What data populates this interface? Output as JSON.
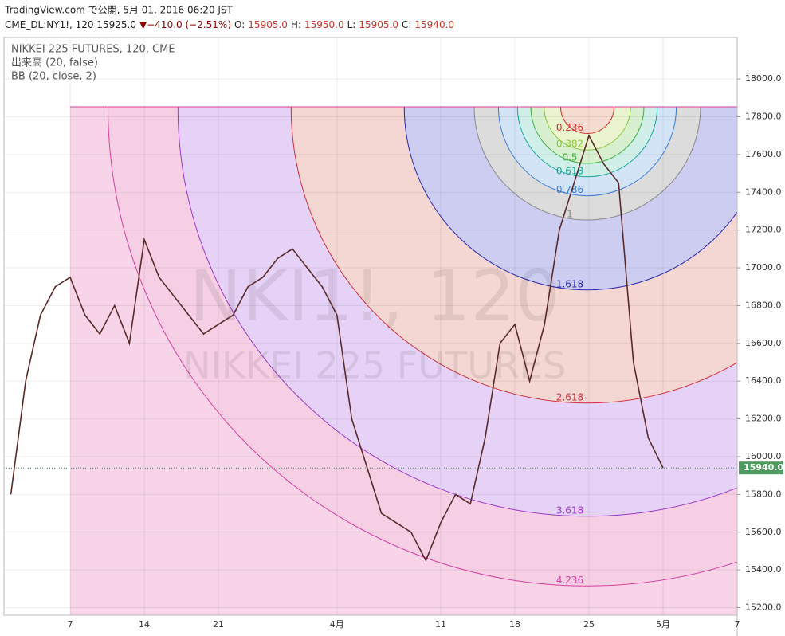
{
  "header": {
    "line1": "TradingView.com で公開, 5月 01, 2016 06:20 JST",
    "symbol": "CME_DL:NY1!, 120 15925.0",
    "change": "▼−410.0 (−2.51%)",
    "ohlc": [
      {
        "key": "O:",
        "value": "15905.0"
      },
      {
        "key": "H:",
        "value": "15950.0"
      },
      {
        "key": "L:",
        "value": "15905.0"
      },
      {
        "key": "C:",
        "value": "15940.0"
      }
    ]
  },
  "chart_data": {
    "type": "line",
    "legend_lines": [
      "NIKKEI 225 FUTURES, 120, CME",
      "出来高 (20, false)",
      "BB (20, close, 2)"
    ],
    "watermark": [
      "NKI1!, 120",
      "NIKKEI 225 FUTURES"
    ],
    "categories": [
      null,
      null,
      null,
      null,
      "7",
      null,
      null,
      null,
      null,
      "14",
      null,
      null,
      null,
      null,
      "21",
      null,
      null,
      null,
      null,
      null,
      null,
      null,
      "4月",
      null,
      null,
      null,
      null,
      null,
      null,
      "11",
      null,
      null,
      null,
      null,
      "18",
      null,
      null,
      null,
      null,
      "25",
      null,
      null,
      null,
      null,
      "5月",
      null,
      null,
      null,
      null,
      "7"
    ],
    "values": [
      15800,
      16400,
      16750,
      16900,
      16950,
      16750,
      16650,
      16800,
      16600,
      17150,
      16950,
      16850,
      16750,
      16650,
      16700,
      16750,
      16900,
      16950,
      17050,
      17100,
      17000,
      16900,
      16750,
      16200,
      15950,
      15700,
      15650,
      15600,
      15450,
      15650,
      15800,
      15750,
      16100,
      16600,
      16700,
      16400,
      16700,
      17200,
      17450,
      17700,
      17550,
      17450,
      16500,
      16100,
      15940,
      null,
      null,
      null,
      null,
      null
    ],
    "color": "#5a2a2a",
    "ylim": [
      15160,
      18220
    ],
    "yticks": [
      {
        "value": 15200,
        "label": "15200.0"
      },
      {
        "value": 15400,
        "label": "15400.0"
      },
      {
        "value": 15600,
        "label": "15600.0"
      },
      {
        "value": 15800,
        "label": "15800.0"
      },
      {
        "value": 16000,
        "label": "16000.0"
      },
      {
        "value": 16200,
        "label": "16200.0"
      },
      {
        "value": 16400,
        "label": "16400.0"
      },
      {
        "value": 16600,
        "label": "16600.0"
      },
      {
        "value": 16800,
        "label": "16800.0"
      },
      {
        "value": 17000,
        "label": "17000.0"
      },
      {
        "value": 17200,
        "label": "17200.0"
      },
      {
        "value": 17400,
        "label": "17400.0"
      },
      {
        "value": 17600,
        "label": "17600.0"
      },
      {
        "value": 17800,
        "label": "17800.0"
      },
      {
        "value": 18000,
        "label": "18000.0"
      }
    ],
    "last_price": {
      "value": 15940,
      "label": "15940.0"
    },
    "grid": true,
    "fib_levels": [
      {
        "level": 4.236,
        "color": "#d63fa0",
        "fill": "#f6cfe5"
      },
      {
        "level": 3.618,
        "color": "#9b38c8",
        "fill": "#e6d2f6"
      },
      {
        "level": 2.618,
        "color": "#d0303a",
        "fill": "#f4d6d2"
      },
      {
        "level": 1.618,
        "color": "#2a2ab0",
        "fill": "#cdcdf1"
      },
      {
        "level": 1,
        "color": "#888888",
        "fill": "#dcdcdc"
      },
      {
        "level": 0.786,
        "color": "#3a7ad8",
        "fill": "#d4e4f7"
      },
      {
        "level": 0.618,
        "color": "#1aa89a",
        "fill": "#cfefe8"
      },
      {
        "level": 0.5,
        "color": "#3cb043",
        "fill": "#d8f0d0"
      },
      {
        "level": 0.382,
        "color": "#8cc63e",
        "fill": "#eaf5cf"
      },
      {
        "level": 0.236,
        "color": "#d0302a",
        "fill": "#f6dcd0"
      }
    ]
  }
}
